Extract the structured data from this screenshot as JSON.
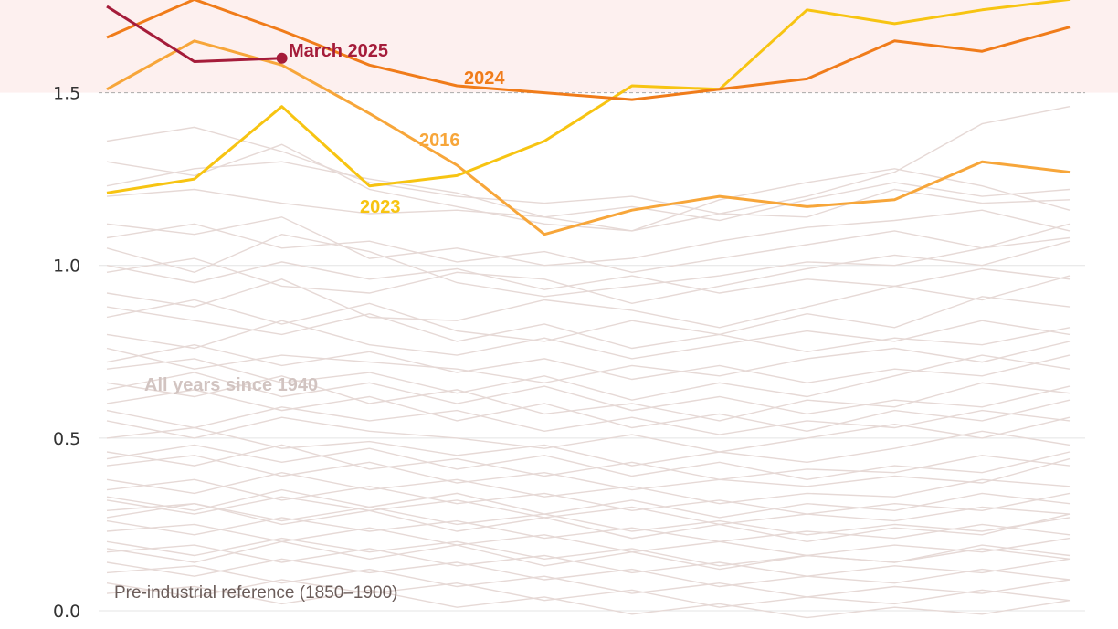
{
  "chart_data": {
    "type": "line",
    "title": "",
    "xlabel": "",
    "ylabel": "",
    "ylim": [
      0,
      1.75
    ],
    "yticks": [
      0.0,
      0.5,
      1.0,
      1.5
    ],
    "ytick_labels": [
      "0.0",
      "0.5",
      "1.0",
      "1.5"
    ],
    "threshold": 1.5,
    "x_months": 12,
    "background_label": "All years since 1940",
    "reference_label": "Pre-industrial reference (1850–1900)",
    "colors": {
      "background_lines": "#e6d9d6",
      "gridline": "#e4e4e4",
      "threshold_band": "#fdf0ef",
      "threshold_line": "#aaaaaa",
      "y2025": "#a51c3a",
      "y2024": "#f07c1a",
      "y2023": "#f7c412",
      "y2016": "#f7a63a"
    },
    "series": [
      {
        "name": "March 2025",
        "values": [
          1.75,
          1.59,
          1.6
        ],
        "label": "March 2025",
        "color": "#a51c3a"
      },
      {
        "name": "2024",
        "values": [
          1.66,
          1.77,
          1.68,
          1.58,
          1.52,
          1.5,
          1.48,
          1.51,
          1.54,
          1.65,
          1.62,
          1.69
        ],
        "label": "2024",
        "color": "#f07c1a"
      },
      {
        "name": "2023",
        "values": [
          1.21,
          1.25,
          1.46,
          1.23,
          1.26,
          1.36,
          1.52,
          1.51,
          1.74,
          1.7,
          1.74,
          1.77
        ],
        "label": "2023",
        "color": "#f7c412"
      },
      {
        "name": "2016",
        "values": [
          1.51,
          1.65,
          1.58,
          1.44,
          1.29,
          1.09,
          1.16,
          1.2,
          1.17,
          1.19,
          1.3,
          1.27
        ],
        "label": "2016",
        "color": "#f7a63a"
      }
    ],
    "background_series": [
      [
        1.3,
        1.26,
        1.35,
        1.22,
        1.17,
        1.12,
        1.1,
        1.19,
        1.24,
        1.28,
        1.23,
        1.16
      ],
      [
        1.23,
        1.28,
        1.3,
        1.25,
        1.21,
        1.14,
        1.1,
        1.15,
        1.2,
        1.27,
        1.41,
        1.46
      ],
      [
        1.2,
        1.22,
        1.18,
        1.15,
        1.16,
        1.14,
        1.17,
        1.13,
        1.19,
        1.24,
        1.2,
        1.22
      ],
      [
        1.36,
        1.4,
        1.33,
        1.24,
        1.2,
        1.18,
        1.2,
        1.15,
        1.14,
        1.22,
        1.18,
        1.19
      ],
      [
        1.12,
        1.09,
        1.14,
        1.02,
        1.05,
        1.0,
        1.02,
        1.07,
        1.11,
        1.13,
        1.16,
        1.1
      ],
      [
        1.05,
        0.98,
        1.09,
        1.04,
        0.95,
        0.91,
        0.94,
        0.97,
        1.01,
        1.0,
        1.05,
        1.08
      ],
      [
        0.98,
        1.02,
        0.94,
        0.92,
        0.98,
        0.96,
        0.89,
        0.94,
        0.99,
        1.03,
        1.0,
        1.07
      ],
      [
        0.92,
        0.88,
        0.96,
        0.85,
        0.84,
        0.9,
        0.87,
        0.82,
        0.88,
        0.94,
        0.9,
        0.97
      ],
      [
        0.85,
        0.9,
        0.83,
        0.89,
        0.81,
        0.78,
        0.84,
        0.8,
        0.86,
        0.82,
        0.91,
        0.88
      ],
      [
        0.8,
        0.76,
        0.84,
        0.77,
        0.74,
        0.79,
        0.73,
        0.77,
        0.81,
        0.78,
        0.84,
        0.8
      ],
      [
        0.76,
        0.7,
        0.74,
        0.72,
        0.7,
        0.66,
        0.71,
        0.68,
        0.73,
        0.76,
        0.72,
        0.78
      ],
      [
        0.7,
        0.73,
        0.66,
        0.69,
        0.63,
        0.68,
        0.61,
        0.66,
        0.62,
        0.68,
        0.74,
        0.7
      ],
      [
        0.66,
        0.62,
        0.68,
        0.6,
        0.64,
        0.57,
        0.6,
        0.55,
        0.61,
        0.59,
        0.66,
        0.63
      ],
      [
        0.6,
        0.64,
        0.58,
        0.62,
        0.55,
        0.6,
        0.53,
        0.57,
        0.52,
        0.58,
        0.55,
        0.61
      ],
      [
        0.55,
        0.5,
        0.56,
        0.52,
        0.5,
        0.47,
        0.51,
        0.46,
        0.5,
        0.54,
        0.5,
        0.56
      ],
      [
        0.5,
        0.53,
        0.47,
        0.49,
        0.45,
        0.48,
        0.42,
        0.46,
        0.43,
        0.47,
        0.52,
        0.48
      ],
      [
        0.46,
        0.42,
        0.48,
        0.41,
        0.44,
        0.39,
        0.43,
        0.38,
        0.41,
        0.4,
        0.45,
        0.42
      ],
      [
        0.42,
        0.45,
        0.39,
        0.43,
        0.37,
        0.4,
        0.35,
        0.38,
        0.36,
        0.39,
        0.37,
        0.44
      ],
      [
        0.38,
        0.34,
        0.4,
        0.35,
        0.38,
        0.33,
        0.36,
        0.31,
        0.34,
        0.33,
        0.38,
        0.36
      ],
      [
        0.35,
        0.38,
        0.32,
        0.36,
        0.31,
        0.34,
        0.29,
        0.32,
        0.28,
        0.31,
        0.29,
        0.34
      ],
      [
        0.32,
        0.28,
        0.33,
        0.29,
        0.32,
        0.27,
        0.3,
        0.25,
        0.28,
        0.26,
        0.3,
        0.28
      ],
      [
        0.29,
        0.31,
        0.26,
        0.3,
        0.25,
        0.28,
        0.23,
        0.26,
        0.22,
        0.25,
        0.23,
        0.27
      ],
      [
        0.26,
        0.22,
        0.27,
        0.23,
        0.26,
        0.21,
        0.24,
        0.2,
        0.23,
        0.21,
        0.25,
        0.22
      ],
      [
        0.23,
        0.25,
        0.2,
        0.24,
        0.19,
        0.22,
        0.17,
        0.2,
        0.16,
        0.19,
        0.17,
        0.21
      ],
      [
        0.2,
        0.16,
        0.21,
        0.17,
        0.2,
        0.15,
        0.18,
        0.13,
        0.16,
        0.14,
        0.18,
        0.15
      ],
      [
        0.17,
        0.19,
        0.14,
        0.18,
        0.13,
        0.16,
        0.11,
        0.14,
        0.1,
        0.13,
        0.11,
        0.15
      ],
      [
        0.14,
        0.1,
        0.15,
        0.11,
        0.14,
        0.09,
        0.12,
        0.07,
        0.1,
        0.08,
        0.12,
        0.09
      ],
      [
        0.11,
        0.13,
        0.08,
        0.12,
        0.07,
        0.1,
        0.05,
        0.08,
        0.04,
        0.07,
        0.05,
        0.09
      ],
      [
        0.08,
        0.04,
        0.09,
        0.05,
        0.08,
        0.03,
        0.06,
        0.01,
        0.04,
        0.02,
        0.06,
        0.03
      ],
      [
        0.05,
        0.07,
        0.02,
        0.06,
        0.01,
        0.04,
        -0.01,
        0.02,
        -0.02,
        0.01,
        -0.01,
        0.03
      ],
      [
        1.0,
        0.95,
        1.01,
        0.96,
        0.99,
        0.93,
        0.97,
        0.92,
        0.96,
        0.94,
        0.99,
        0.96
      ],
      [
        0.72,
        0.77,
        0.71,
        0.75,
        0.69,
        0.73,
        0.67,
        0.71,
        0.66,
        0.7,
        0.68,
        0.74
      ],
      [
        0.58,
        0.53,
        0.59,
        0.55,
        0.58,
        0.52,
        0.56,
        0.51,
        0.55,
        0.53,
        0.58,
        0.55
      ],
      [
        0.44,
        0.48,
        0.43,
        0.47,
        0.41,
        0.45,
        0.39,
        0.43,
        0.38,
        0.42,
        0.4,
        0.46
      ],
      [
        0.33,
        0.29,
        0.35,
        0.3,
        0.34,
        0.28,
        0.32,
        0.27,
        0.31,
        0.29,
        0.34,
        0.31
      ],
      [
        0.27,
        0.31,
        0.25,
        0.29,
        0.23,
        0.27,
        0.21,
        0.25,
        0.2,
        0.24,
        0.22,
        0.28
      ],
      [
        0.18,
        0.14,
        0.2,
        0.15,
        0.19,
        0.13,
        0.17,
        0.12,
        0.16,
        0.14,
        0.19,
        0.16
      ],
      [
        0.88,
        0.84,
        0.8,
        0.86,
        0.78,
        0.83,
        0.76,
        0.8,
        0.75,
        0.79,
        0.77,
        0.82
      ],
      [
        0.64,
        0.69,
        0.62,
        0.66,
        0.6,
        0.65,
        0.58,
        0.62,
        0.57,
        0.61,
        0.59,
        0.65
      ],
      [
        1.08,
        1.12,
        1.05,
        1.07,
        1.01,
        1.04,
        0.98,
        1.02,
        1.06,
        1.1,
        1.05,
        1.12
      ]
    ]
  }
}
